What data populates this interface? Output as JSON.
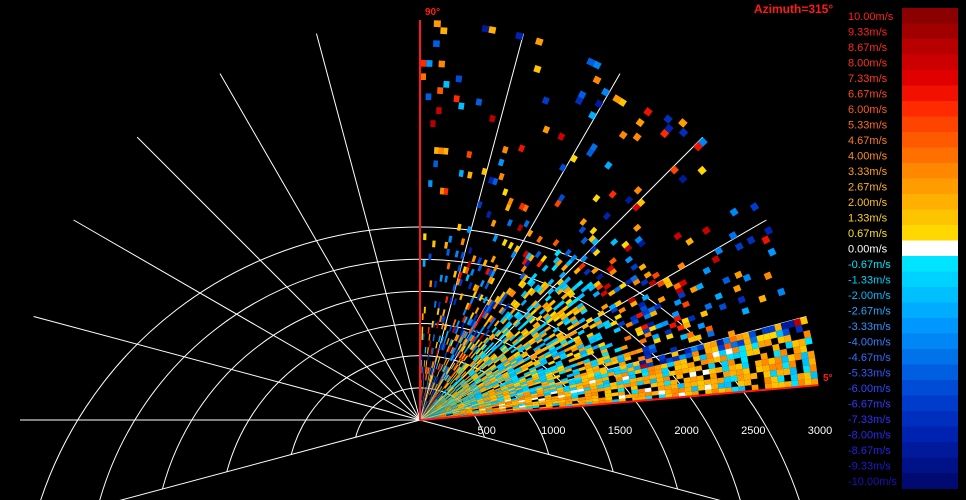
{
  "chart_data": {
    "type": "heatmap",
    "subtype": "radar-sector-ppi",
    "title": "Azimuth=315°",
    "sector_start_label": "90°",
    "sector_end_label": "5°",
    "sector_deg": [
      5,
      90
    ],
    "radial_axis": {
      "range": [
        0,
        3000
      ],
      "ticks": [
        500,
        1000,
        1500,
        2000,
        2500,
        3000
      ],
      "tick_labels": [
        "500",
        "1000",
        "1500",
        "2000",
        "2500",
        "3000"
      ]
    },
    "angular_grid_deg": [
      -15,
      15,
      30,
      45,
      60,
      75,
      90,
      105,
      120,
      135,
      150,
      165,
      180,
      195
    ],
    "grid": true,
    "colorbar": {
      "unit": "m/s",
      "labels": [
        "10.00m/s",
        "9.33m/s",
        "8.67m/s",
        "8.00m/s",
        "7.33m/s",
        "6.67m/s",
        "6.00m/s",
        "5.33m/s",
        "4.67m/s",
        "4.00m/s",
        "3.33m/s",
        "2.67m/s",
        "2.00m/s",
        "1.33m/s",
        "0.67m/s",
        "0.00m/s",
        "-0.67m/s",
        "-1.33m/s",
        "-2.00m/s",
        "-2.67m/s",
        "-3.33m/s",
        "-4.00m/s",
        "-4.67m/s",
        "-5.33m/s",
        "-6.00m/s",
        "-6.67m/s",
        "-7.33m/s",
        "-8.00m/s",
        "-8.67m/s",
        "-9.33m/s",
        "-10.00m/s"
      ],
      "colors": [
        "#8b0000",
        "#a00000",
        "#b80000",
        "#cc0000",
        "#e00000",
        "#f21000",
        "#ff2a00",
        "#ff4400",
        "#ff5a00",
        "#ff7000",
        "#ff8800",
        "#ff9c00",
        "#ffb000",
        "#ffc400",
        "#ffd800",
        "#ffffff",
        "#00e5ff",
        "#00d2ff",
        "#00bfff",
        "#00acff",
        "#0098ff",
        "#0086f5",
        "#0072ea",
        "#005ee0",
        "#004cd6",
        "#003ccc",
        "#002fc0",
        "#0022b0",
        "#001a9c",
        "#001288",
        "#000a70"
      ],
      "label_colors": [
        "#ff2020",
        "#ff2020",
        "#ff2a20",
        "#ff3020",
        "#ff3a20",
        "#ff4a20",
        "#ff5a20",
        "#ff6a20",
        "#ff7a20",
        "#ff8c20",
        "#ff9e20",
        "#ffb020",
        "#ffc020",
        "#ffd020",
        "#ffe020",
        "#ffffff",
        "#00e5ff",
        "#00d0ff",
        "#00bcff",
        "#20a8ff",
        "#3094ff",
        "#3080ff",
        "#306cff",
        "#3058ff",
        "#3048ff",
        "#3038ff",
        "#2f30ff",
        "#2a28f0",
        "#2420e0",
        "#1e18d0",
        "#1810c0"
      ]
    },
    "velocity_field": {
      "range_bins": 60,
      "azimuth_bins": 85,
      "description": "radial velocity returns dense near origin and low elevation, sparse at long range"
    }
  }
}
